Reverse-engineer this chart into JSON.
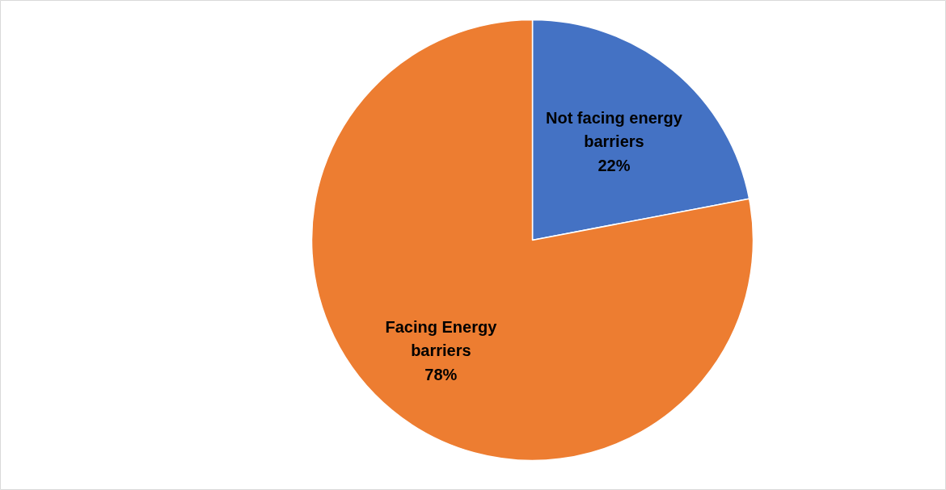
{
  "chart_data": {
    "type": "pie",
    "categories": [
      "Not facing energy barriers",
      "Facing Energy barriers"
    ],
    "values": [
      22,
      78
    ],
    "value_labels": [
      "22%",
      "78%"
    ],
    "colors": [
      "#4472c4",
      "#ed7d31"
    ],
    "legend": false
  }
}
